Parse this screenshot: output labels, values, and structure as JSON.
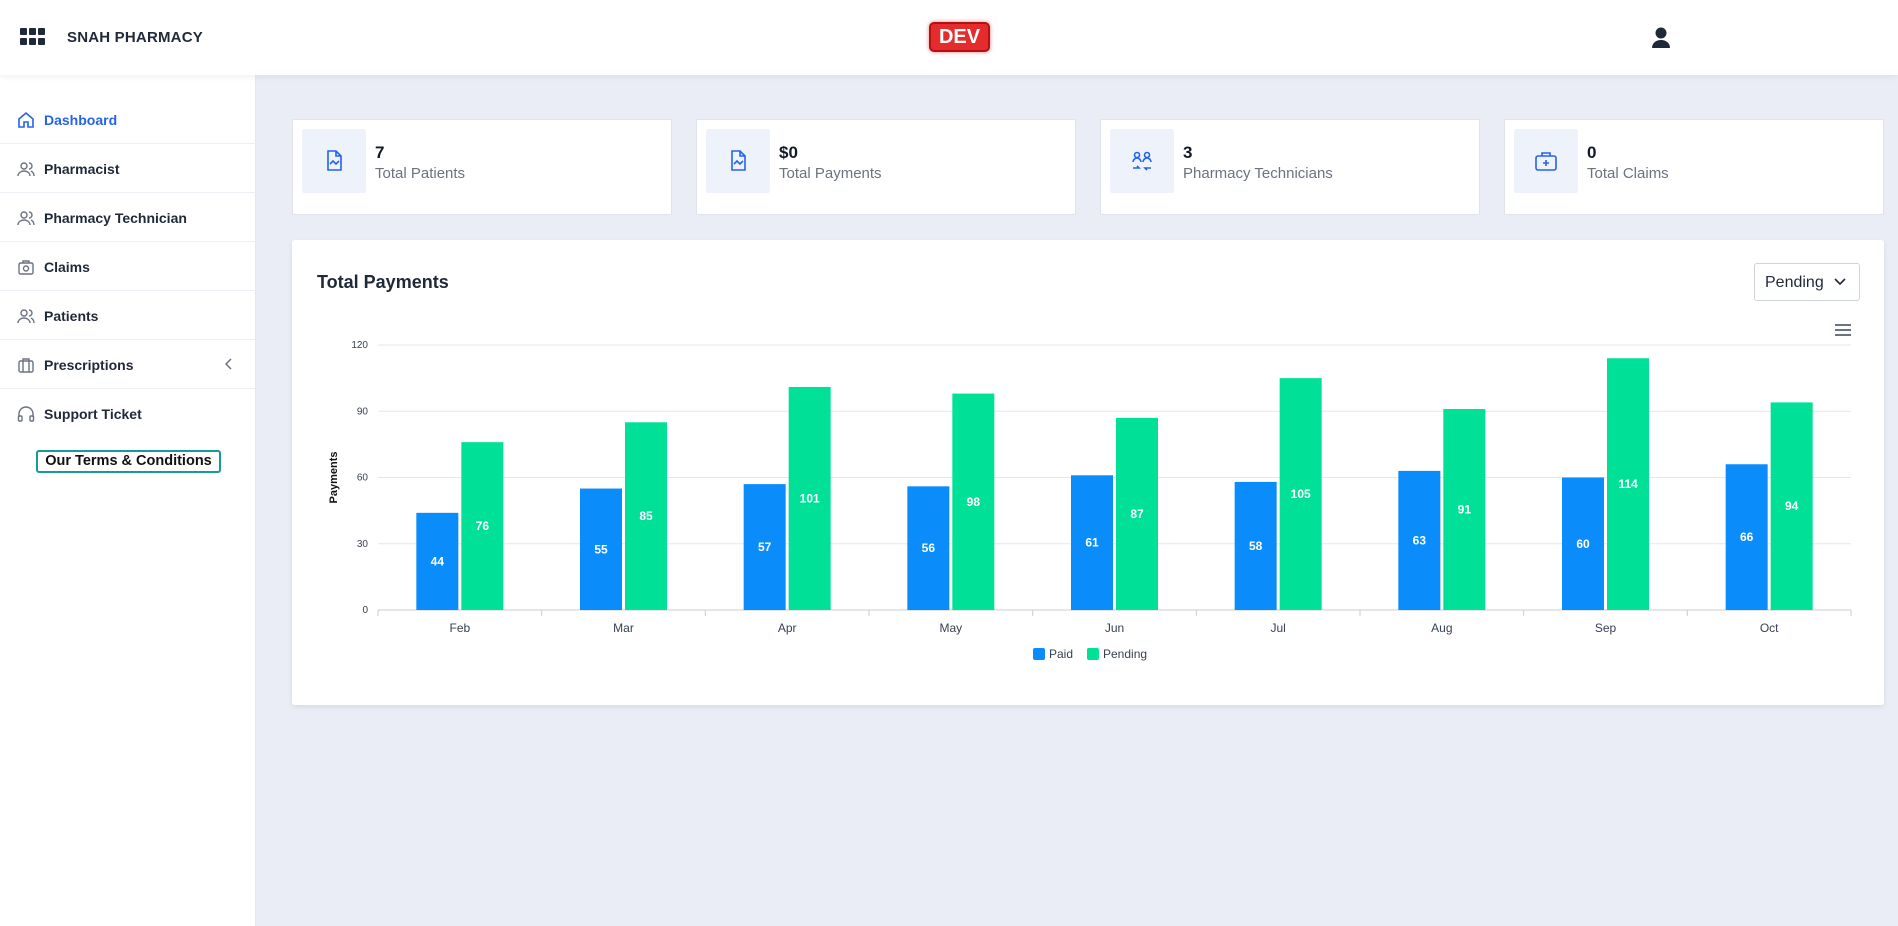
{
  "header": {
    "brand": "SNAH PHARMACY",
    "env_badge": "DEV"
  },
  "sidebar": {
    "items": [
      {
        "label": "Dashboard",
        "icon": "home-icon",
        "active": true
      },
      {
        "label": "Pharmacist",
        "icon": "users-icon"
      },
      {
        "label": "Pharmacy Technician",
        "icon": "users-icon"
      },
      {
        "label": "Claims",
        "icon": "camera-bag-icon"
      },
      {
        "label": "Patients",
        "icon": "users-icon"
      },
      {
        "label": "Prescriptions",
        "icon": "briefcase-icon",
        "has_submenu": true
      },
      {
        "label": "Support Ticket",
        "icon": "headphones-icon"
      }
    ],
    "terms_label": "Our Terms & Conditions"
  },
  "stats": [
    {
      "value": "7",
      "label": "Total Patients",
      "icon": "document-chart-icon"
    },
    {
      "value": "$0",
      "label": "Total Payments",
      "icon": "document-chart-icon"
    },
    {
      "value": "3",
      "label": "Pharmacy Technicians",
      "icon": "users-exchange-icon"
    },
    {
      "value": "0",
      "label": "Total Claims",
      "icon": "medical-kit-icon"
    }
  ],
  "panel": {
    "title": "Total Payments",
    "filter_value": "Pending"
  },
  "colors": {
    "accent": "#2563eb",
    "paid": "#0a8dfb",
    "pending": "#00e096",
    "dev": "#e52b2b"
  },
  "chart_data": {
    "type": "bar",
    "ylabel": "Payments",
    "xlabel": "",
    "ylim": [
      0,
      120
    ],
    "yticks": [
      0,
      30,
      60,
      90,
      120
    ],
    "categories": [
      "Feb",
      "Mar",
      "Apr",
      "May",
      "Jun",
      "Jul",
      "Aug",
      "Sep",
      "Oct"
    ],
    "series": [
      {
        "name": "Paid",
        "values": [
          44,
          55,
          57,
          56,
          61,
          58,
          63,
          60,
          66
        ]
      },
      {
        "name": "Pending",
        "values": [
          76,
          85,
          101,
          98,
          87,
          105,
          91,
          114,
          94
        ]
      }
    ],
    "grid": true,
    "data_labels": true,
    "legend": "bottom-center"
  }
}
